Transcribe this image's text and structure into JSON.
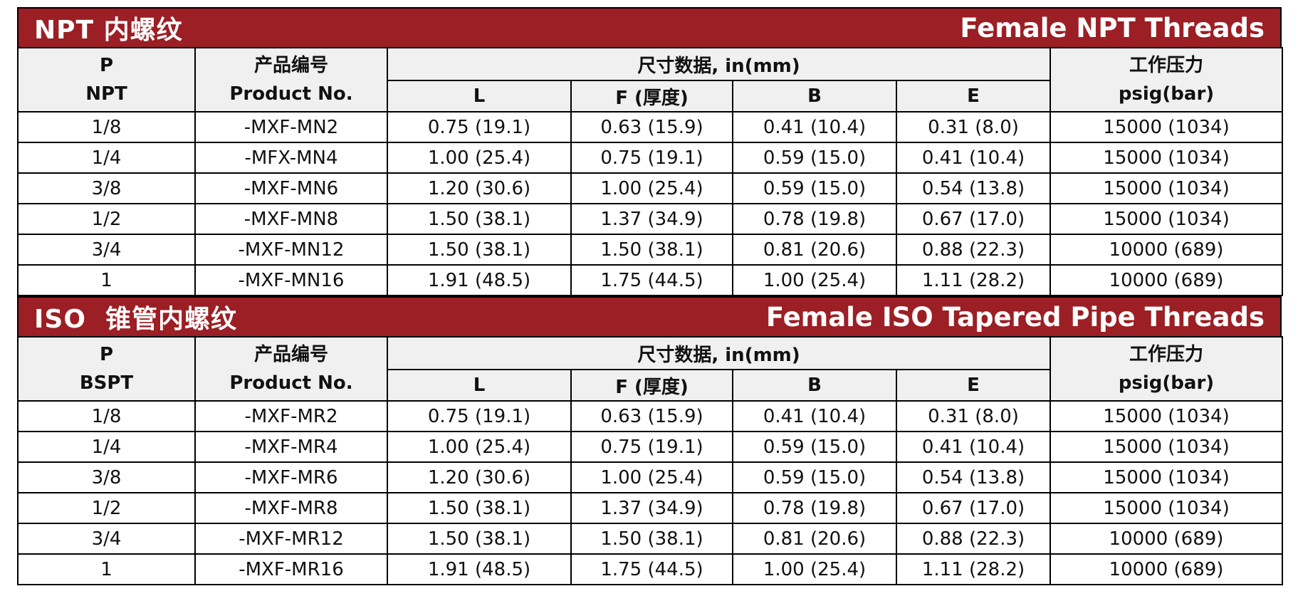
{
  "sections": [
    {
      "title_cn": "NPT 内螺纹",
      "title_en": "Female NPT Threads",
      "headers": {
        "p_top": "P",
        "p_bottom": "NPT",
        "product_cn": "产品编号",
        "product_en": "Product No.",
        "dimension_group": "尺寸数据, in(mm)",
        "L": "L",
        "F": "F (厚度)",
        "B": "B",
        "E": "E",
        "pressure_cn": "工作压力",
        "pressure_unit": "psig(bar)"
      },
      "rows": [
        {
          "p": "1/8",
          "product": "-MXF-MN2",
          "L": "0.75 (19.1)",
          "F": "0.63 (15.9)",
          "B": "0.41 (10.4)",
          "E": "0.31 (8.0)",
          "pressure": "15000 (1034)"
        },
        {
          "p": "1/4",
          "product": "-MFX-MN4",
          "L": "1.00 (25.4)",
          "F": "0.75 (19.1)",
          "B": "0.59 (15.0)",
          "E": "0.41 (10.4)",
          "pressure": "15000 (1034)"
        },
        {
          "p": "3/8",
          "product": "-MXF-MN6",
          "L": "1.20 (30.6)",
          "F": "1.00 (25.4)",
          "B": "0.59 (15.0)",
          "E": "0.54 (13.8)",
          "pressure": "15000 (1034)"
        },
        {
          "p": "1/2",
          "product": "-MXF-MN8",
          "L": "1.50 (38.1)",
          "F": "1.37 (34.9)",
          "B": "0.78 (19.8)",
          "E": "0.67 (17.0)",
          "pressure": "15000 (1034)"
        },
        {
          "p": "3/4",
          "product": "-MXF-MN12",
          "L": "1.50 (38.1)",
          "F": "1.50 (38.1)",
          "B": "0.81 (20.6)",
          "E": "0.88 (22.3)",
          "pressure": "10000 (689)"
        },
        {
          "p": "1",
          "product": "-MXF-MN16",
          "L": "1.91 (48.5)",
          "F": "1.75 (44.5)",
          "B": "1.00 (25.4)",
          "E": "1.11 (28.2)",
          "pressure": "10000 (689)"
        }
      ]
    },
    {
      "title_cn": "ISO  锥管内螺纹",
      "title_en": "Female ISO Tapered Pipe Threads",
      "headers": {
        "p_top": "P",
        "p_bottom": "BSPT",
        "product_cn": "产品编号",
        "product_en": "Product No.",
        "dimension_group": "尺寸数据, in(mm)",
        "L": "L",
        "F": "F (厚度)",
        "B": "B",
        "E": "E",
        "pressure_cn": "工作压力",
        "pressure_unit": "psig(bar)"
      },
      "rows": [
        {
          "p": "1/8",
          "product": "-MXF-MR2",
          "L": "0.75 (19.1)",
          "F": "0.63 (15.9)",
          "B": "0.41 (10.4)",
          "E": "0.31 (8.0)",
          "pressure": "15000 (1034)"
        },
        {
          "p": "1/4",
          "product": "-MXF-MR4",
          "L": "1.00 (25.4)",
          "F": "0.75 (19.1)",
          "B": "0.59 (15.0)",
          "E": "0.41 (10.4)",
          "pressure": "15000 (1034)"
        },
        {
          "p": "3/8",
          "product": "-MXF-MR6",
          "L": "1.20 (30.6)",
          "F": "1.00 (25.4)",
          "B": "0.59 (15.0)",
          "E": "0.54 (13.8)",
          "pressure": "15000 (1034)"
        },
        {
          "p": "1/2",
          "product": "-MXF-MR8",
          "L": "1.50 (38.1)",
          "F": "1.37 (34.9)",
          "B": "0.78 (19.8)",
          "E": "0.67 (17.0)",
          "pressure": "15000 (1034)"
        },
        {
          "p": "3/4",
          "product": "-MXF-MR12",
          "L": "1.50 (38.1)",
          "F": "1.50 (38.1)",
          "B": "0.81 (20.6)",
          "E": "0.88 (22.3)",
          "pressure": "10000 (689)"
        },
        {
          "p": "1",
          "product": "-MXF-MR16",
          "L": "1.91 (48.5)",
          "F": "1.75 (44.5)",
          "B": "1.00 (25.4)",
          "E": "1.11 (28.2)",
          "pressure": "10000 (689)"
        }
      ]
    }
  ],
  "colors": {
    "banner": "#9b1f24",
    "header_bg": "#f0f0f0"
  }
}
